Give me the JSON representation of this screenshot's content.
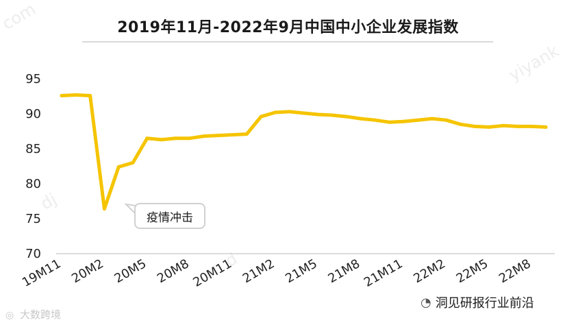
{
  "title": "2019年11月-2022年9月中国中小企业发展指数",
  "callout": "疫情冲击",
  "source_watermark": "大数跨境",
  "account_label": "洞见研报行业前沿",
  "watermark_fragments": [
    "com",
    "yiyank",
    "dj",
    "d"
  ],
  "chart_data": {
    "type": "line",
    "title": "2019年11月-2022年9月中国中小企业发展指数",
    "xlabel": "",
    "ylabel": "",
    "ylim": [
      70,
      95
    ],
    "yticks": [
      70,
      75,
      80,
      85,
      90,
      95
    ],
    "x_tick_labels": [
      "19M11",
      "20M2",
      "20M5",
      "20M8",
      "20M11",
      "21M2",
      "21M5",
      "21M8",
      "21M11",
      "22M2",
      "22M5",
      "22M8"
    ],
    "grid": false,
    "color": "#F5C400",
    "series": [
      {
        "x": [
          "19M11",
          "19M12",
          "20M1",
          "20M2",
          "20M3",
          "20M4",
          "20M5",
          "20M6",
          "20M7",
          "20M8",
          "20M9",
          "20M10",
          "20M11",
          "20M12",
          "21M1",
          "21M2",
          "21M3",
          "21M4",
          "21M5",
          "21M6",
          "21M7",
          "21M8",
          "21M9",
          "21M10",
          "21M11",
          "21M12",
          "22M1",
          "22M2",
          "22M3",
          "22M4",
          "22M5",
          "22M6",
          "22M7",
          "22M8",
          "22M9"
        ],
        "values": [
          92.6,
          92.7,
          92.6,
          76.4,
          82.4,
          83.0,
          86.5,
          86.3,
          86.5,
          86.5,
          86.8,
          86.9,
          87.0,
          87.1,
          89.6,
          90.2,
          90.3,
          90.1,
          89.9,
          89.8,
          89.6,
          89.3,
          89.1,
          88.8,
          88.9,
          89.1,
          89.3,
          89.1,
          88.5,
          88.2,
          88.1,
          88.3,
          88.2,
          88.2,
          88.1
        ]
      }
    ]
  }
}
